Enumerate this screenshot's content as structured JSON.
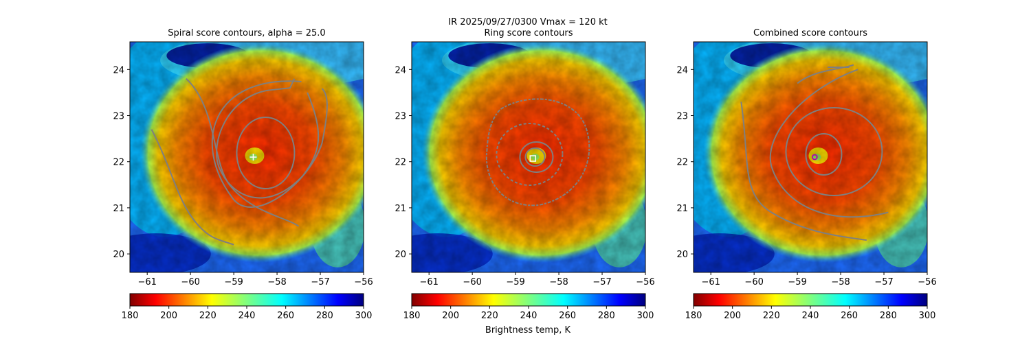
{
  "figure": {
    "suptitle_line1": "IR  2025/09/27/0300    Vmax = 120 kt",
    "colorbar_label": "Brightness temp, K"
  },
  "colors": {
    "contour": "#7f7f7f",
    "ring_marker": "#ffffff",
    "combined_marker": "#b000b0",
    "spiral_marker": "#ffffff"
  },
  "chart_data": [
    {
      "type": "heatmap",
      "title": "Spiral score contours, alpha = 25.0",
      "xlim": [
        -61.4,
        -56.0
      ],
      "ylim": [
        19.6,
        24.6
      ],
      "xticks": [
        -61,
        -60,
        -59,
        -58,
        -57,
        -56
      ],
      "yticks": [
        20,
        21,
        22,
        23,
        24
      ],
      "center": {
        "lon": -58.55,
        "lat": 22.1
      },
      "marker": "plus",
      "colorbar": {
        "min": 180,
        "max": 300,
        "ticks": [
          180,
          200,
          220,
          240,
          260,
          280,
          300
        ],
        "cmap": "jet_r"
      }
    },
    {
      "type": "heatmap",
      "title": "Ring score contours",
      "xlim": [
        -61.4,
        -56.0
      ],
      "ylim": [
        19.6,
        24.6
      ],
      "xticks": [
        -61,
        -60,
        -59,
        -58,
        -57,
        -56
      ],
      "yticks": [
        20,
        21,
        22,
        23,
        24
      ],
      "center": {
        "lon": -58.55,
        "lat": 22.1
      },
      "marker": "square",
      "colorbar": {
        "min": 180,
        "max": 300,
        "ticks": [
          180,
          200,
          220,
          240,
          260,
          280,
          300
        ],
        "cmap": "jet_r"
      }
    },
    {
      "type": "heatmap",
      "title": "Combined score contours",
      "xlim": [
        -61.4,
        -56.0
      ],
      "ylim": [
        19.6,
        24.6
      ],
      "xticks": [
        -61,
        -60,
        -59,
        -58,
        -57,
        -56
      ],
      "yticks": [
        20,
        21,
        22,
        23,
        24
      ],
      "center": {
        "lon": -58.55,
        "lat": 22.1
      },
      "marker": "circle",
      "colorbar": {
        "min": 180,
        "max": 300,
        "ticks": [
          180,
          200,
          220,
          240,
          260,
          280,
          300
        ],
        "cmap": "jet_r"
      }
    }
  ]
}
